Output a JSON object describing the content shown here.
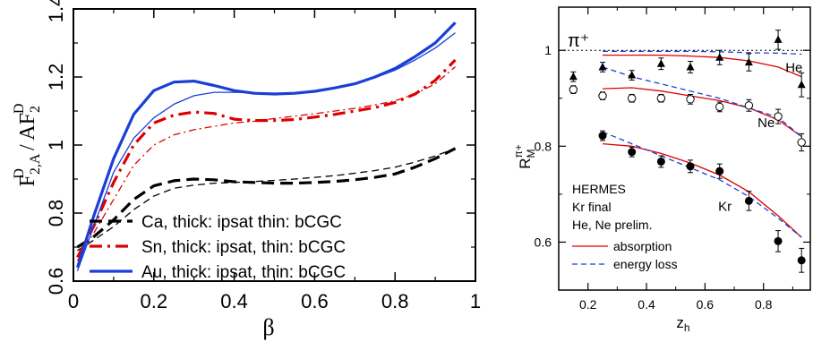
{
  "chart_data": [
    {
      "type": "line",
      "xlabel": "β",
      "ylabel": "F_{2,A}^D / AF_2^D",
      "xlim": [
        0,
        1
      ],
      "ylim": [
        0.6,
        1.4
      ],
      "xticks": [
        {
          "v": 0,
          "label": "0"
        },
        {
          "v": 0.2,
          "label": "0.2"
        },
        {
          "v": 0.4,
          "label": "0.4"
        },
        {
          "v": 0.6,
          "label": "0.6"
        },
        {
          "v": 0.8,
          "label": "0.8"
        },
        {
          "v": 1,
          "label": "1"
        }
      ],
      "yticks": [
        {
          "v": 0.6,
          "label": "0.6"
        },
        {
          "v": 0.8,
          "label": "0.8"
        },
        {
          "v": 1,
          "label": "1"
        },
        {
          "v": 1.2,
          "label": "1.2"
        },
        {
          "v": 1.4,
          "label": "1.4"
        }
      ],
      "legend": [
        {
          "label": "Ca, thick: ipsat thin: bCGC",
          "color": "#000000",
          "dash": "dash"
        },
        {
          "label": "Sn, thick: ipsat, thin: bCGC",
          "color": "#dd0000",
          "dash": "dashdot"
        },
        {
          "label": "Au, thick: ipsat, thin: bCGC",
          "color": "#1a3fd6",
          "dash": "solid"
        }
      ],
      "series": [
        {
          "name": "Ca thick",
          "color": "#000000",
          "dash": "dash",
          "width": 3.2,
          "x": [
            0.01,
            0.05,
            0.1,
            0.15,
            0.2,
            0.25,
            0.3,
            0.35,
            0.4,
            0.45,
            0.5,
            0.55,
            0.6,
            0.65,
            0.7,
            0.75,
            0.8,
            0.85,
            0.9,
            0.95
          ],
          "y": [
            0.7,
            0.73,
            0.78,
            0.84,
            0.88,
            0.895,
            0.9,
            0.898,
            0.892,
            0.89,
            0.888,
            0.888,
            0.89,
            0.893,
            0.898,
            0.905,
            0.915,
            0.935,
            0.96,
            0.99
          ]
        },
        {
          "name": "Ca thin",
          "color": "#000000",
          "dash": "dash",
          "width": 1.3,
          "x": [
            0.01,
            0.05,
            0.1,
            0.15,
            0.2,
            0.25,
            0.3,
            0.35,
            0.4,
            0.45,
            0.5,
            0.55,
            0.6,
            0.65,
            0.7,
            0.75,
            0.8,
            0.85,
            0.9,
            0.95
          ],
          "y": [
            0.69,
            0.72,
            0.76,
            0.81,
            0.85,
            0.873,
            0.882,
            0.888,
            0.89,
            0.893,
            0.896,
            0.9,
            0.905,
            0.91,
            0.917,
            0.925,
            0.935,
            0.95,
            0.968,
            0.99
          ]
        },
        {
          "name": "Sn thick",
          "color": "#dd0000",
          "dash": "dashdot",
          "width": 3.2,
          "x": [
            0.01,
            0.05,
            0.1,
            0.15,
            0.2,
            0.25,
            0.3,
            0.35,
            0.4,
            0.45,
            0.5,
            0.55,
            0.6,
            0.65,
            0.7,
            0.75,
            0.8,
            0.85,
            0.9,
            0.95
          ],
          "y": [
            0.67,
            0.76,
            0.89,
            1.0,
            1.065,
            1.088,
            1.097,
            1.093,
            1.076,
            1.072,
            1.072,
            1.075,
            1.082,
            1.09,
            1.1,
            1.11,
            1.125,
            1.15,
            1.19,
            1.25
          ]
        },
        {
          "name": "Sn thin",
          "color": "#dd0000",
          "dash": "dashdot",
          "width": 1.3,
          "x": [
            0.01,
            0.05,
            0.1,
            0.15,
            0.2,
            0.25,
            0.3,
            0.35,
            0.4,
            0.45,
            0.5,
            0.55,
            0.6,
            0.65,
            0.7,
            0.75,
            0.8,
            0.85,
            0.9,
            0.95
          ],
          "y": [
            0.66,
            0.74,
            0.84,
            0.94,
            1.0,
            1.03,
            1.045,
            1.055,
            1.065,
            1.07,
            1.078,
            1.085,
            1.092,
            1.1,
            1.108,
            1.118,
            1.13,
            1.15,
            1.18,
            1.23
          ]
        },
        {
          "name": "Au thick",
          "color": "#1a3fd6",
          "dash": "solid",
          "width": 3.2,
          "x": [
            0.01,
            0.05,
            0.1,
            0.15,
            0.2,
            0.25,
            0.3,
            0.35,
            0.4,
            0.45,
            0.5,
            0.55,
            0.6,
            0.65,
            0.7,
            0.75,
            0.8,
            0.85,
            0.9,
            0.95
          ],
          "y": [
            0.64,
            0.79,
            0.96,
            1.09,
            1.16,
            1.185,
            1.188,
            1.175,
            1.16,
            1.152,
            1.15,
            1.152,
            1.158,
            1.168,
            1.18,
            1.2,
            1.225,
            1.26,
            1.3,
            1.36
          ]
        },
        {
          "name": "Au thin",
          "color": "#1a3fd6",
          "dash": "solid",
          "width": 1.3,
          "x": [
            0.01,
            0.05,
            0.1,
            0.15,
            0.2,
            0.25,
            0.3,
            0.35,
            0.4,
            0.45,
            0.5,
            0.55,
            0.6,
            0.65,
            0.7,
            0.75,
            0.8,
            0.85,
            0.9,
            0.95
          ],
          "y": [
            0.63,
            0.76,
            0.92,
            1.02,
            1.08,
            1.12,
            1.145,
            1.155,
            1.155,
            1.153,
            1.152,
            1.153,
            1.16,
            1.168,
            1.18,
            1.198,
            1.22,
            1.25,
            1.285,
            1.33
          ]
        }
      ]
    },
    {
      "type": "scatter",
      "xlabel": "z_h",
      "ylabel": "R_M^{π+}",
      "xlim": [
        0.1,
        0.96
      ],
      "ylim": [
        0.5,
        1.09
      ],
      "xticks": [
        {
          "v": 0.2,
          "label": "0.2"
        },
        {
          "v": 0.4,
          "label": "0.4"
        },
        {
          "v": 0.6,
          "label": "0.6"
        },
        {
          "v": 0.8,
          "label": "0.8"
        }
      ],
      "yticks": [
        {
          "v": 0.6,
          "label": "0.6"
        },
        {
          "v": 0.8,
          "label": "0.8"
        },
        {
          "v": 1,
          "label": "1"
        }
      ],
      "reference_line": 1.0,
      "particle_label": "π⁺",
      "labels": [
        {
          "text": "He",
          "x": 0.875,
          "y": 0.955
        },
        {
          "text": "Ne",
          "x": 0.78,
          "y": 0.84
        },
        {
          "text": "Kr",
          "x": 0.645,
          "y": 0.665
        }
      ],
      "info_text": [
        "HERMES",
        "Kr final",
        "He, Ne prelim."
      ],
      "legend": [
        {
          "label": "absorption",
          "color": "#dd0000",
          "dash": "solid"
        },
        {
          "label": "energy loss",
          "color": "#1a3fd6",
          "dash": "dash"
        }
      ],
      "points": [
        {
          "name": "He",
          "marker": "triangle",
          "x": [
            0.15,
            0.25,
            0.35,
            0.45,
            0.55,
            0.65,
            0.75,
            0.85,
            0.93
          ],
          "y": [
            0.945,
            0.965,
            0.948,
            0.972,
            0.965,
            0.985,
            0.975,
            1.022,
            0.928
          ],
          "err": [
            0.01,
            0.01,
            0.01,
            0.012,
            0.012,
            0.015,
            0.018,
            0.02,
            0.025
          ]
        },
        {
          "name": "Ne",
          "marker": "open-circle",
          "x": [
            0.15,
            0.25,
            0.35,
            0.45,
            0.55,
            0.65,
            0.75,
            0.85,
            0.93
          ],
          "y": [
            0.918,
            0.905,
            0.9,
            0.9,
            0.898,
            0.882,
            0.885,
            0.862,
            0.808
          ],
          "err": [
            0.008,
            0.008,
            0.008,
            0.008,
            0.01,
            0.01,
            0.012,
            0.015,
            0.018
          ]
        },
        {
          "name": "Kr",
          "marker": "filled-circle",
          "x": [
            0.25,
            0.35,
            0.45,
            0.55,
            0.65,
            0.75,
            0.85,
            0.93
          ],
          "y": [
            0.822,
            0.788,
            0.768,
            0.758,
            0.748,
            0.686,
            0.602,
            0.562
          ],
          "err": [
            0.01,
            0.01,
            0.012,
            0.013,
            0.015,
            0.02,
            0.022,
            0.025
          ]
        }
      ],
      "curves": [
        {
          "name": "He absorption",
          "color": "#dd0000",
          "dash": "solid",
          "x": [
            0.25,
            0.35,
            0.45,
            0.55,
            0.65,
            0.75,
            0.85,
            0.93
          ],
          "y": [
            0.99,
            0.99,
            0.99,
            0.988,
            0.985,
            0.978,
            0.965,
            0.945
          ]
        },
        {
          "name": "He energy loss",
          "color": "#1a3fd6",
          "dash": "dash",
          "x": [
            0.25,
            0.35,
            0.45,
            0.55,
            0.65,
            0.75,
            0.85,
            0.93
          ],
          "y": [
            0.998,
            0.998,
            0.998,
            0.998,
            0.997,
            0.995,
            0.994,
            0.992
          ]
        },
        {
          "name": "Ne absorption",
          "color": "#dd0000",
          "dash": "solid",
          "x": [
            0.25,
            0.35,
            0.45,
            0.55,
            0.65,
            0.75,
            0.85,
            0.93
          ],
          "y": [
            0.92,
            0.922,
            0.915,
            0.905,
            0.895,
            0.88,
            0.855,
            0.82
          ]
        },
        {
          "name": "Ne energy loss",
          "color": "#1a3fd6",
          "dash": "dash",
          "x": [
            0.25,
            0.35,
            0.45,
            0.55,
            0.65,
            0.75,
            0.85,
            0.93
          ],
          "y": [
            0.965,
            0.945,
            0.93,
            0.915,
            0.9,
            0.88,
            0.86,
            0.82
          ]
        },
        {
          "name": "Kr absorption",
          "color": "#dd0000",
          "dash": "solid",
          "x": [
            0.25,
            0.35,
            0.45,
            0.55,
            0.65,
            0.75,
            0.85,
            0.93
          ],
          "y": [
            0.805,
            0.8,
            0.785,
            0.765,
            0.74,
            0.705,
            0.655,
            0.61
          ]
        },
        {
          "name": "Kr energy loss",
          "color": "#1a3fd6",
          "dash": "dash",
          "x": [
            0.25,
            0.35,
            0.45,
            0.55,
            0.65,
            0.75,
            0.85,
            0.93
          ],
          "y": [
            0.83,
            0.805,
            0.78,
            0.755,
            0.73,
            0.695,
            0.65,
            0.61
          ]
        }
      ]
    }
  ]
}
